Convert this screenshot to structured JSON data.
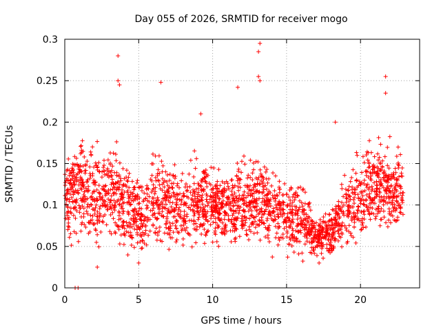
{
  "chart_data": {
    "type": "scatter",
    "title": "Day 055 of 2026, SRMTID for receiver mogo",
    "xlabel": "GPS time / hours",
    "ylabel": "SRMTID / TECUs",
    "xlim": [
      0,
      24
    ],
    "ylim": [
      0,
      0.3
    ],
    "xticks": [
      0,
      5,
      10,
      15,
      20
    ],
    "xtick_labels": [
      "0",
      "5",
      "10",
      "15",
      "20"
    ],
    "yticks": [
      0,
      0.05,
      0.1,
      0.15,
      0.2,
      0.25,
      0.3
    ],
    "ytick_labels": [
      "0",
      "0.05",
      "0.1",
      "0.15",
      "0.2",
      "0.25",
      "0.3"
    ],
    "grid": true,
    "marker": "plus",
    "color": "#ff0000",
    "series": [
      {
        "name": "SRMTID",
        "x_range_hours": [
          0,
          22.9
        ],
        "sample_points": [
          {
            "x": 0.7,
            "y": 0.0
          },
          {
            "x": 0.9,
            "y": 0.0
          },
          {
            "x": 3.6,
            "y": 0.28
          },
          {
            "x": 3.6,
            "y": 0.25
          },
          {
            "x": 3.7,
            "y": 0.245
          },
          {
            "x": 6.5,
            "y": 0.248
          },
          {
            "x": 9.2,
            "y": 0.21
          },
          {
            "x": 11.7,
            "y": 0.242
          },
          {
            "x": 13.2,
            "y": 0.295
          },
          {
            "x": 13.1,
            "y": 0.285
          },
          {
            "x": 13.1,
            "y": 0.255
          },
          {
            "x": 13.2,
            "y": 0.25
          },
          {
            "x": 21.7,
            "y": 0.255
          },
          {
            "x": 21.7,
            "y": 0.235
          },
          {
            "x": 18.3,
            "y": 0.2
          },
          {
            "x": 17.2,
            "y": 0.03
          },
          {
            "x": 2.2,
            "y": 0.025
          },
          {
            "x": 5.0,
            "y": 0.03
          }
        ],
        "trend_by_hour": [
          {
            "x": 0,
            "mean": 0.11,
            "spread": 0.04
          },
          {
            "x": 1,
            "mean": 0.125,
            "spread": 0.05
          },
          {
            "x": 2,
            "mean": 0.105,
            "spread": 0.045
          },
          {
            "x": 3,
            "mean": 0.12,
            "spread": 0.05
          },
          {
            "x": 4,
            "mean": 0.1,
            "spread": 0.04
          },
          {
            "x": 5,
            "mean": 0.085,
            "spread": 0.035
          },
          {
            "x": 6,
            "mean": 0.105,
            "spread": 0.045
          },
          {
            "x": 7,
            "mean": 0.1,
            "spread": 0.04
          },
          {
            "x": 8,
            "mean": 0.09,
            "spread": 0.035
          },
          {
            "x": 9,
            "mean": 0.105,
            "spread": 0.045
          },
          {
            "x": 10,
            "mean": 0.1,
            "spread": 0.035
          },
          {
            "x": 11,
            "mean": 0.095,
            "spread": 0.035
          },
          {
            "x": 12,
            "mean": 0.1,
            "spread": 0.04
          },
          {
            "x": 13,
            "mean": 0.105,
            "spread": 0.04
          },
          {
            "x": 14,
            "mean": 0.095,
            "spread": 0.035
          },
          {
            "x": 15,
            "mean": 0.09,
            "spread": 0.035
          },
          {
            "x": 16,
            "mean": 0.085,
            "spread": 0.035
          },
          {
            "x": 17,
            "mean": 0.06,
            "spread": 0.02
          },
          {
            "x": 18,
            "mean": 0.07,
            "spread": 0.025
          },
          {
            "x": 19,
            "mean": 0.095,
            "spread": 0.035
          },
          {
            "x": 20,
            "mean": 0.11,
            "spread": 0.04
          },
          {
            "x": 21,
            "mean": 0.125,
            "spread": 0.045
          },
          {
            "x": 22,
            "mean": 0.12,
            "spread": 0.04
          },
          {
            "x": 22.9,
            "mean": 0.115,
            "spread": 0.035
          }
        ]
      }
    ]
  }
}
